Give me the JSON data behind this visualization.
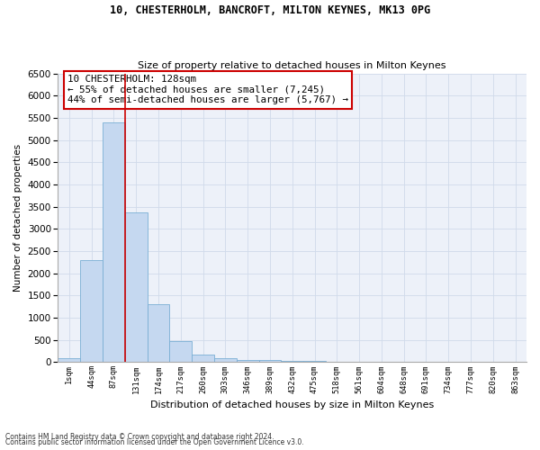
{
  "title1": "10, CHESTERHOLM, BANCROFT, MILTON KEYNES, MK13 0PG",
  "title2": "Size of property relative to detached houses in Milton Keynes",
  "xlabel": "Distribution of detached houses by size in Milton Keynes",
  "ylabel": "Number of detached properties",
  "footer1": "Contains HM Land Registry data © Crown copyright and database right 2024.",
  "footer2": "Contains public sector information licensed under the Open Government Licence v3.0.",
  "bar_labels": [
    "1sqm",
    "44sqm",
    "87sqm",
    "131sqm",
    "174sqm",
    "217sqm",
    "260sqm",
    "303sqm",
    "346sqm",
    "389sqm",
    "432sqm",
    "475sqm",
    "518sqm",
    "561sqm",
    "604sqm",
    "648sqm",
    "691sqm",
    "734sqm",
    "777sqm",
    "820sqm",
    "863sqm"
  ],
  "bar_values": [
    80,
    2300,
    5400,
    3380,
    1300,
    480,
    175,
    80,
    55,
    50,
    30,
    20,
    10,
    5,
    3,
    2,
    1,
    1,
    1,
    0,
    0
  ],
  "bar_color": "#c5d8f0",
  "bar_edge_color": "#7aafd4",
  "grid_color": "#d0daea",
  "vline_x": 2.5,
  "vline_color": "#cc0000",
  "annotation_text": "10 CHESTERHOLM: 128sqm\n← 55% of detached houses are smaller (7,245)\n44% of semi-detached houses are larger (5,767) →",
  "annotation_box_color": "#ffffff",
  "annotation_box_edge": "#cc0000",
  "ylim": [
    0,
    6500
  ],
  "yticks": [
    0,
    500,
    1000,
    1500,
    2000,
    2500,
    3000,
    3500,
    4000,
    4500,
    5000,
    5500,
    6000,
    6500
  ],
  "bg_color": "#edf1f9",
  "fig_bg_color": "#ffffff"
}
